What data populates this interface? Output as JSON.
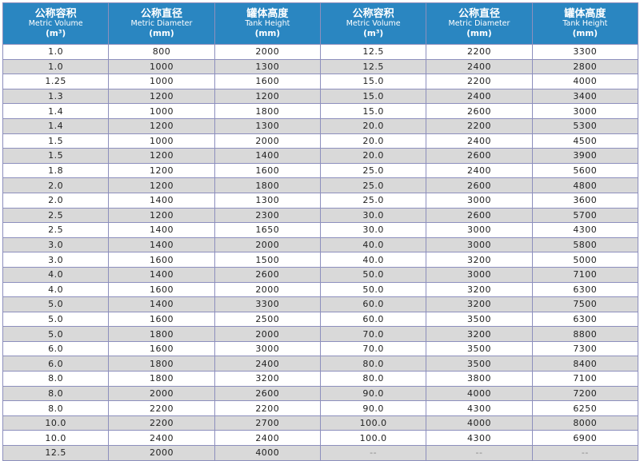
{
  "headers": [
    {
      "cn": "公称容积",
      "en": "Metric Volume",
      "unit": "(m³)"
    },
    {
      "cn": "公称直径",
      "en": "Metric Diameter",
      "unit": "(mm)"
    },
    {
      "cn": "罐体高度",
      "en": "Tank Height",
      "unit": "(mm)"
    },
    {
      "cn": "公称容积",
      "en": "Metric Volume",
      "unit": "(m³)"
    },
    {
      "cn": "公称直径",
      "en": "Metric Diameter",
      "unit": "(mm)"
    },
    {
      "cn": "罐体高度",
      "en": "Tank Height",
      "unit": "(mm)"
    }
  ],
  "rows": [
    [
      "1.0",
      "800",
      "2000",
      "12.5",
      "2200",
      "3300"
    ],
    [
      "1.0",
      "1000",
      "1300",
      "12.5",
      "2400",
      "2800"
    ],
    [
      "1.25",
      "1000",
      "1600",
      "15.0",
      "2200",
      "4000"
    ],
    [
      "1.3",
      "1200",
      "1200",
      "15.0",
      "2400",
      "3400"
    ],
    [
      "1.4",
      "1000",
      "1800",
      "15.0",
      "2600",
      "3000"
    ],
    [
      "1.4",
      "1200",
      "1300",
      "20.0",
      "2200",
      "5300"
    ],
    [
      "1.5",
      "1000",
      "2000",
      "20.0",
      "2400",
      "4500"
    ],
    [
      "1.5",
      "1200",
      "1400",
      "20.0",
      "2600",
      "3900"
    ],
    [
      "1.8",
      "1200",
      "1600",
      "25.0",
      "2400",
      "5600"
    ],
    [
      "2.0",
      "1200",
      "1800",
      "25.0",
      "2600",
      "4800"
    ],
    [
      "2.0",
      "1400",
      "1300",
      "25.0",
      "3000",
      "3600"
    ],
    [
      "2.5",
      "1200",
      "2300",
      "30.0",
      "2600",
      "5700"
    ],
    [
      "2.5",
      "1400",
      "1650",
      "30.0",
      "3000",
      "4300"
    ],
    [
      "3.0",
      "1400",
      "2000",
      "40.0",
      "3000",
      "5800"
    ],
    [
      "3.0",
      "1600",
      "1500",
      "40.0",
      "3200",
      "5000"
    ],
    [
      "4.0",
      "1400",
      "2600",
      "50.0",
      "3000",
      "7100"
    ],
    [
      "4.0",
      "1600",
      "2000",
      "50.0",
      "3200",
      "6300"
    ],
    [
      "5.0",
      "1400",
      "3300",
      "60.0",
      "3200",
      "7500"
    ],
    [
      "5.0",
      "1600",
      "2500",
      "60.0",
      "3500",
      "6300"
    ],
    [
      "5.0",
      "1800",
      "2000",
      "70.0",
      "3200",
      "8800"
    ],
    [
      "6.0",
      "1600",
      "3000",
      "70.0",
      "3500",
      "7300"
    ],
    [
      "6.0",
      "1800",
      "2400",
      "80.0",
      "3500",
      "8400"
    ],
    [
      "8.0",
      "1800",
      "3200",
      "80.0",
      "3800",
      "7100"
    ],
    [
      "8.0",
      "2000",
      "2600",
      "90.0",
      "4000",
      "7200"
    ],
    [
      "8.0",
      "2200",
      "2200",
      "90.0",
      "4300",
      "6250"
    ],
    [
      "10.0",
      "2200",
      "2700",
      "100.0",
      "4000",
      "8000"
    ],
    [
      "10.0",
      "2400",
      "2400",
      "100.0",
      "4300",
      "6900"
    ],
    [
      "12.5",
      "2000",
      "4000",
      "--",
      "--",
      "--"
    ]
  ],
  "colors": {
    "header_bg": "#2a86c1",
    "stripe": "#d9d9d9",
    "border": "#8d8fbd"
  }
}
